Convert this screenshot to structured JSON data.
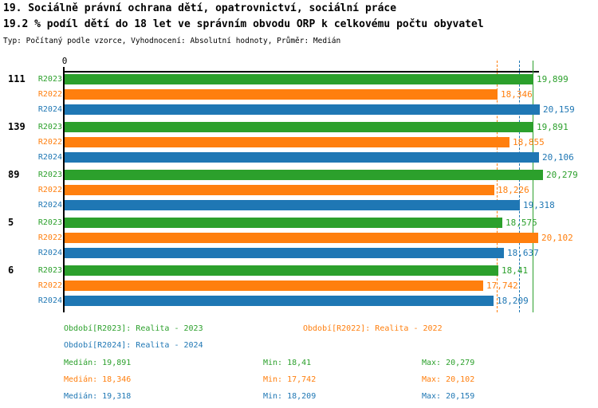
{
  "header": {
    "title_line1": "19. Sociálně právní ochrana dětí, opatrovnictví, sociální práce",
    "title_line2": "19.2 % podíl dětí do 18 let ve správním obvodu ORP k celkovému počtu obyvatel",
    "meta": "Typ: Počítaný podle vzorce, Vyhodnocení: Absolutní hodnoty, Průměr: Medián"
  },
  "colors": {
    "R2023": "#2CA02C",
    "R2022": "#FF7F0E",
    "R2024": "#1F77B4",
    "axis": "#000000",
    "background": "#FFFFFF"
  },
  "chart_data": {
    "type": "bar",
    "orientation": "horizontal",
    "x_axis": {
      "origin_tick_label": "0",
      "min": 0,
      "grid": false
    },
    "value_note": "czech decimal comma formatting",
    "series_order": [
      "R2023",
      "R2022",
      "R2024"
    ],
    "groups": [
      {
        "label": "111",
        "bars": [
          {
            "series": "R2023",
            "value": 19.899,
            "display": "19,899"
          },
          {
            "series": "R2022",
            "value": 18.346,
            "display": "18,346"
          },
          {
            "series": "R2024",
            "value": 20.159,
            "display": "20,159"
          }
        ]
      },
      {
        "label": "139",
        "bars": [
          {
            "series": "R2023",
            "value": 19.891,
            "display": "19,891"
          },
          {
            "series": "R2022",
            "value": 18.855,
            "display": "18,855"
          },
          {
            "series": "R2024",
            "value": 20.106,
            "display": "20,106"
          }
        ]
      },
      {
        "label": "89",
        "bars": [
          {
            "series": "R2023",
            "value": 20.279,
            "display": "20,279"
          },
          {
            "series": "R2022",
            "value": 18.226,
            "display": "18,226"
          },
          {
            "series": "R2024",
            "value": 19.318,
            "display": "19,318"
          }
        ]
      },
      {
        "label": "5",
        "bars": [
          {
            "series": "R2023",
            "value": 18.575,
            "display": "18,575"
          },
          {
            "series": "R2022",
            "value": 20.102,
            "display": "20,102"
          },
          {
            "series": "R2024",
            "value": 18.637,
            "display": "18,637"
          }
        ]
      },
      {
        "label": "6",
        "bars": [
          {
            "series": "R2023",
            "value": 18.41,
            "display": "18,41"
          },
          {
            "series": "R2022",
            "value": 17.742,
            "display": "17,742"
          },
          {
            "series": "R2024",
            "value": 18.209,
            "display": "18,209"
          }
        ]
      }
    ],
    "median_lines": [
      {
        "series": "R2023",
        "value": 19.891,
        "style": "solid"
      },
      {
        "series": "R2022",
        "value": 18.346,
        "style": "dashed"
      },
      {
        "series": "R2024",
        "value": 19.318,
        "style": "dashed"
      }
    ]
  },
  "legend": {
    "items": [
      {
        "series": "R2023",
        "label": "Období[R2023]: Realita - 2023"
      },
      {
        "series": "R2022",
        "label": "Období[R2022]: Realita - 2022"
      },
      {
        "series": "R2024",
        "label": "Období[R2024]: Realita - 2024"
      }
    ]
  },
  "stats": {
    "rows": [
      {
        "series": "R2023",
        "median": "Medián: 19,891",
        "min": "Min: 18,41",
        "max": "Max: 20,279"
      },
      {
        "series": "R2022",
        "median": "Medián: 18,346",
        "min": "Min: 17,742",
        "max": "Max: 20,102"
      },
      {
        "series": "R2024",
        "median": "Medián: 19,318",
        "min": "Min: 18,209",
        "max": "Max: 20,159"
      }
    ]
  }
}
